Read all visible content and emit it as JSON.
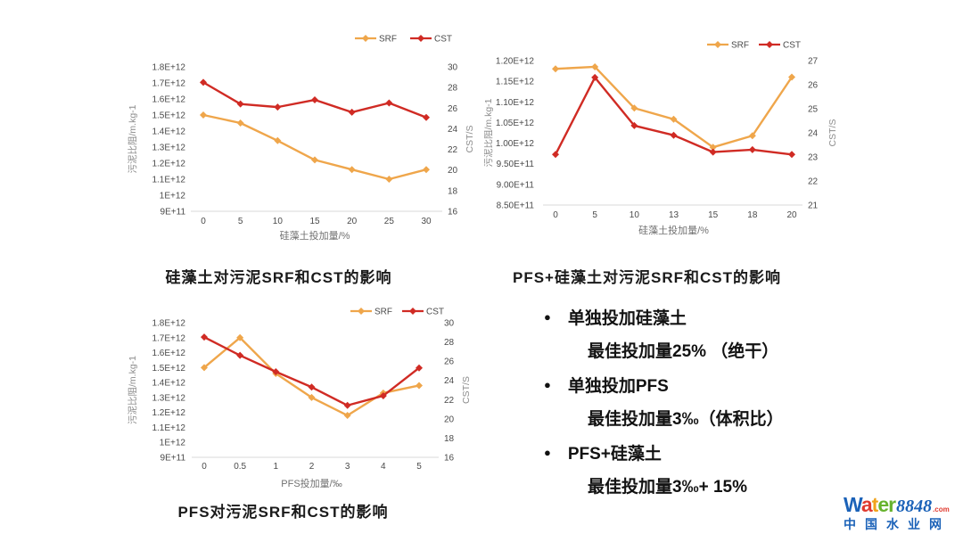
{
  "page": {
    "background": "#ffffff"
  },
  "colors": {
    "srf": "#EFA64B",
    "cst": "#D02B24",
    "tick": "#4a4a4a",
    "axis_label": "#8c8c8c",
    "x_label": "#707070",
    "baseline": "#d9d9d9",
    "logo_blue": "#1b62b8",
    "logo_red": "#e03a2f",
    "logo_amber": "#f0a31c",
    "logo_green": "#67b32e"
  },
  "chart_data": [
    {
      "type": "line",
      "id": "diatomite",
      "title": "硅藻土对污泥SRF和CST的影响",
      "legend_position": "top-right",
      "grid": false,
      "x": {
        "label": "硅藻土投加量/%",
        "ticks": [
          "0",
          "5",
          "10",
          "15",
          "20",
          "25",
          "30"
        ]
      },
      "y_left": {
        "label": "污泥比阻/m.kg-1",
        "min": 900000000000.0,
        "max": 1800000000000.0,
        "ticks": [
          "1.8E+12",
          "1.7E+12",
          "1.6E+12",
          "1.5E+12",
          "1.4E+12",
          "1.3E+12",
          "1.2E+12",
          "1.1E+12",
          "1E+12",
          "9E+11"
        ]
      },
      "y_right": {
        "label": "CST/S",
        "min": 16,
        "max": 30,
        "ticks": [
          "30",
          "28",
          "26",
          "24",
          "22",
          "20",
          "18",
          "16"
        ]
      },
      "series": [
        {
          "name": "SRF",
          "axis": "left",
          "color": "#EFA64B",
          "values": [
            1500000000000.0,
            1450000000000.0,
            1340000000000.0,
            1220000000000.0,
            1160000000000.0,
            1100000000000.0,
            1160000000000.0
          ]
        },
        {
          "name": "CST",
          "axis": "right",
          "color": "#D02B24",
          "values": [
            28.5,
            26.4,
            26.1,
            26.8,
            25.6,
            26.5,
            25.1
          ]
        }
      ]
    },
    {
      "type": "line",
      "id": "pfs-plus-diatomite",
      "title": "PFS+硅藻土对污泥SRF和CST的影响",
      "legend_position": "top-right",
      "grid": false,
      "x": {
        "label": "硅藻土投加量/%",
        "ticks": [
          "0",
          "5",
          "10",
          "13",
          "15",
          "18",
          "20"
        ]
      },
      "y_left": {
        "label": "污泥比阻/m.kg-1",
        "min": 850000000000.0,
        "max": 1200000000000.0,
        "ticks": [
          "1.20E+12",
          "1.15E+12",
          "1.10E+12",
          "1.05E+12",
          "1.00E+12",
          "9.50E+11",
          "9.00E+11",
          "8.50E+11"
        ]
      },
      "y_right": {
        "label": "CST/S",
        "min": 21,
        "max": 27,
        "ticks": [
          "27",
          "26",
          "25",
          "24",
          "23",
          "22",
          "21"
        ]
      },
      "series": [
        {
          "name": "SRF",
          "axis": "left",
          "color": "#EFA64B",
          "values": [
            1180000000000.0,
            1185000000000.0,
            1085000000000.0,
            1058000000000.0,
            990000000000.0,
            1018000000000.0,
            1160000000000.0
          ]
        },
        {
          "name": "CST",
          "axis": "right",
          "color": "#D02B24",
          "values": [
            23.1,
            26.3,
            24.3,
            23.9,
            23.2,
            23.3,
            23.1
          ]
        }
      ]
    },
    {
      "type": "line",
      "id": "pfs",
      "title": "PFS对污泥SRF和CST的影响",
      "legend_position": "top-right",
      "grid": false,
      "x": {
        "label": "PFS投加量/‰",
        "ticks": [
          "0",
          "0.5",
          "1",
          "2",
          "3",
          "4",
          "5"
        ]
      },
      "y_left": {
        "label": "污泥比阻/m.kg-1",
        "min": 900000000000.0,
        "max": 1800000000000.0,
        "ticks": [
          "1.8E+12",
          "1.7E+12",
          "1.6E+12",
          "1.5E+12",
          "1.4E+12",
          "1.3E+12",
          "1.2E+12",
          "1.1E+12",
          "1E+12",
          "9E+11"
        ]
      },
      "y_right": {
        "label": "CST/S",
        "min": 16,
        "max": 30,
        "ticks": [
          "30",
          "28",
          "26",
          "24",
          "22",
          "20",
          "18",
          "16"
        ]
      },
      "series": [
        {
          "name": "SRF",
          "axis": "left",
          "color": "#EFA64B",
          "values": [
            1500000000000.0,
            1700000000000.0,
            1460000000000.0,
            1300000000000.0,
            1180000000000.0,
            1330000000000.0,
            1380000000000.0
          ]
        },
        {
          "name": "CST",
          "axis": "right",
          "color": "#D02B24",
          "values": [
            28.5,
            26.6,
            24.9,
            23.3,
            21.4,
            22.4,
            25.3
          ]
        }
      ]
    }
  ],
  "notes": {
    "bullet": "●",
    "items": [
      {
        "head": "单独投加硅藻土",
        "sub": "最佳投加量25% （绝干）"
      },
      {
        "head": "单独投加PFS",
        "sub": "最佳投加量3‰（体积比）"
      },
      {
        "head": "PFS+硅藻土",
        "sub": "最佳投加量3‰+ 15%"
      }
    ]
  },
  "logo": {
    "word_letters": [
      {
        "ch": "W",
        "color": "#1b62b8"
      },
      {
        "ch": "a",
        "color": "#e03a2f"
      },
      {
        "ch": "t",
        "color": "#f0a31c"
      },
      {
        "ch": "e",
        "color": "#67b32e"
      },
      {
        "ch": "r",
        "color": "#67b32e"
      }
    ],
    "number": "8848",
    "dotcom": ".com",
    "subtitle": "中国水业网"
  }
}
